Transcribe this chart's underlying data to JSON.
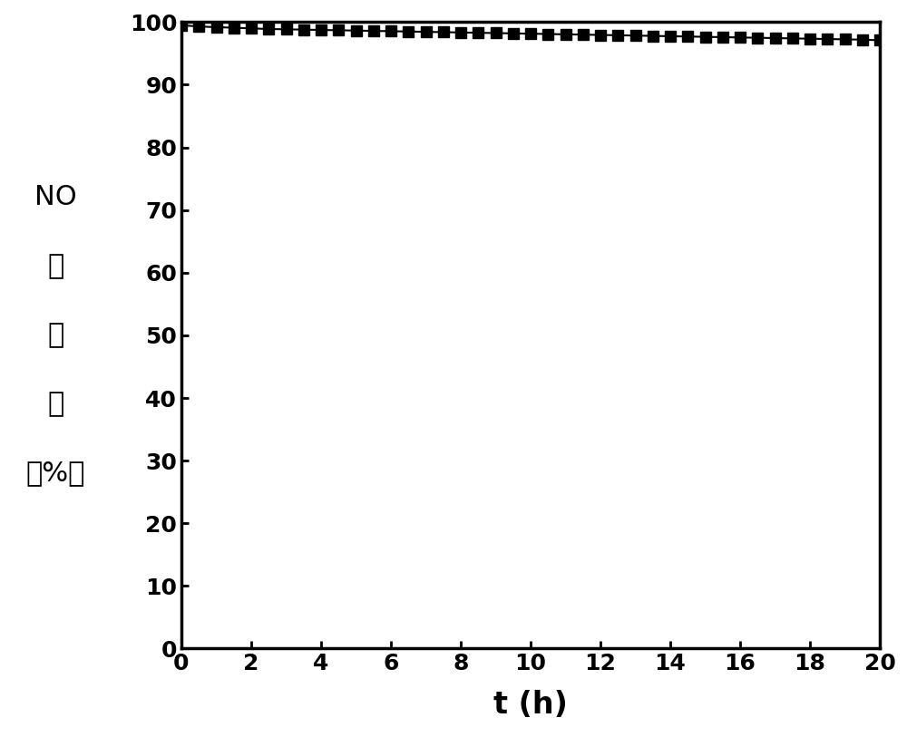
{
  "x_data": [
    0,
    0.5,
    1,
    1.5,
    2,
    2.5,
    3,
    3.5,
    4,
    4.5,
    5,
    5.5,
    6,
    6.5,
    7,
    7.5,
    8,
    8.5,
    9,
    9.5,
    10,
    10.5,
    11,
    11.5,
    12,
    12.5,
    13,
    13.5,
    14,
    14.5,
    15,
    15.5,
    16,
    16.5,
    17,
    17.5,
    18,
    18.5,
    19,
    19.5,
    20
  ],
  "y_data": [
    99.5,
    99.3,
    99.2,
    99.1,
    99.0,
    98.9,
    98.85,
    98.8,
    98.75,
    98.7,
    98.65,
    98.6,
    98.55,
    98.5,
    98.45,
    98.4,
    98.35,
    98.3,
    98.25,
    98.2,
    98.15,
    98.1,
    98.05,
    98.0,
    97.95,
    97.9,
    97.85,
    97.8,
    97.75,
    97.7,
    97.65,
    97.6,
    97.55,
    97.5,
    97.45,
    97.4,
    97.35,
    97.3,
    97.25,
    97.2,
    97.1
  ],
  "xlabel": "t (h)",
  "ylabel_lines": [
    "NO",
    "转",
    "化",
    "率",
    "（%）"
  ],
  "xlim": [
    0,
    20
  ],
  "ylim": [
    0,
    100
  ],
  "xticks": [
    0,
    2,
    4,
    6,
    8,
    10,
    12,
    14,
    16,
    18,
    20
  ],
  "yticks": [
    0,
    10,
    20,
    30,
    40,
    50,
    60,
    70,
    80,
    90,
    100
  ],
  "line_color": "#000000",
  "marker": "s",
  "markersize": 8,
  "linewidth": 1.5,
  "background_color": "#ffffff",
  "tick_fontsize": 18,
  "ylabel_fontsize": 22,
  "xlabel_fontsize": 24,
  "axis_linewidth": 2.5
}
